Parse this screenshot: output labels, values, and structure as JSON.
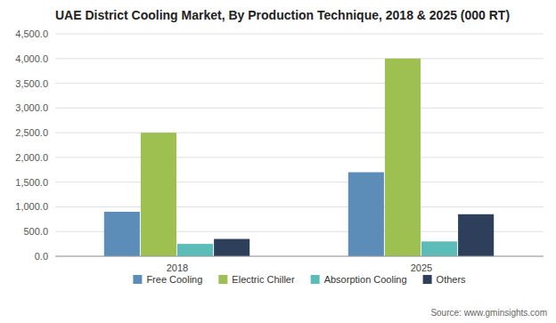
{
  "chart_data": {
    "type": "bar",
    "title": "UAE District Cooling Market, By Production Technique, 2018 & 2025 (000 RT)",
    "categories": [
      "2018",
      "2025"
    ],
    "series": [
      {
        "name": "Free Cooling",
        "color": "#5b8db8",
        "values": [
          900,
          1700
        ]
      },
      {
        "name": "Electric Chiller",
        "color": "#9dc050",
        "values": [
          2500,
          4000
        ]
      },
      {
        "name": "Absorption Cooling",
        "color": "#5bbcb8",
        "values": [
          250,
          300
        ]
      },
      {
        "name": "Others",
        "color": "#2e3f5c",
        "values": [
          350,
          850
        ]
      }
    ],
    "ylim": [
      0,
      4500
    ],
    "yticks": [
      {
        "value": 0,
        "label": "0.0"
      },
      {
        "value": 500,
        "label": "500.0"
      },
      {
        "value": 1000,
        "label": "1,000.0"
      },
      {
        "value": 1500,
        "label": "1,500.0"
      },
      {
        "value": 2000,
        "label": "2,000.0"
      },
      {
        "value": 2500,
        "label": "2,500.0"
      },
      {
        "value": 3000,
        "label": "3,000.0"
      },
      {
        "value": 3500,
        "label": "3,500.0"
      },
      {
        "value": 4000,
        "label": "4,000.0"
      },
      {
        "value": 4500,
        "label": "4,500.0"
      }
    ],
    "grid": true,
    "legend": "bottom",
    "source": "Source: www.gminsights.com"
  }
}
